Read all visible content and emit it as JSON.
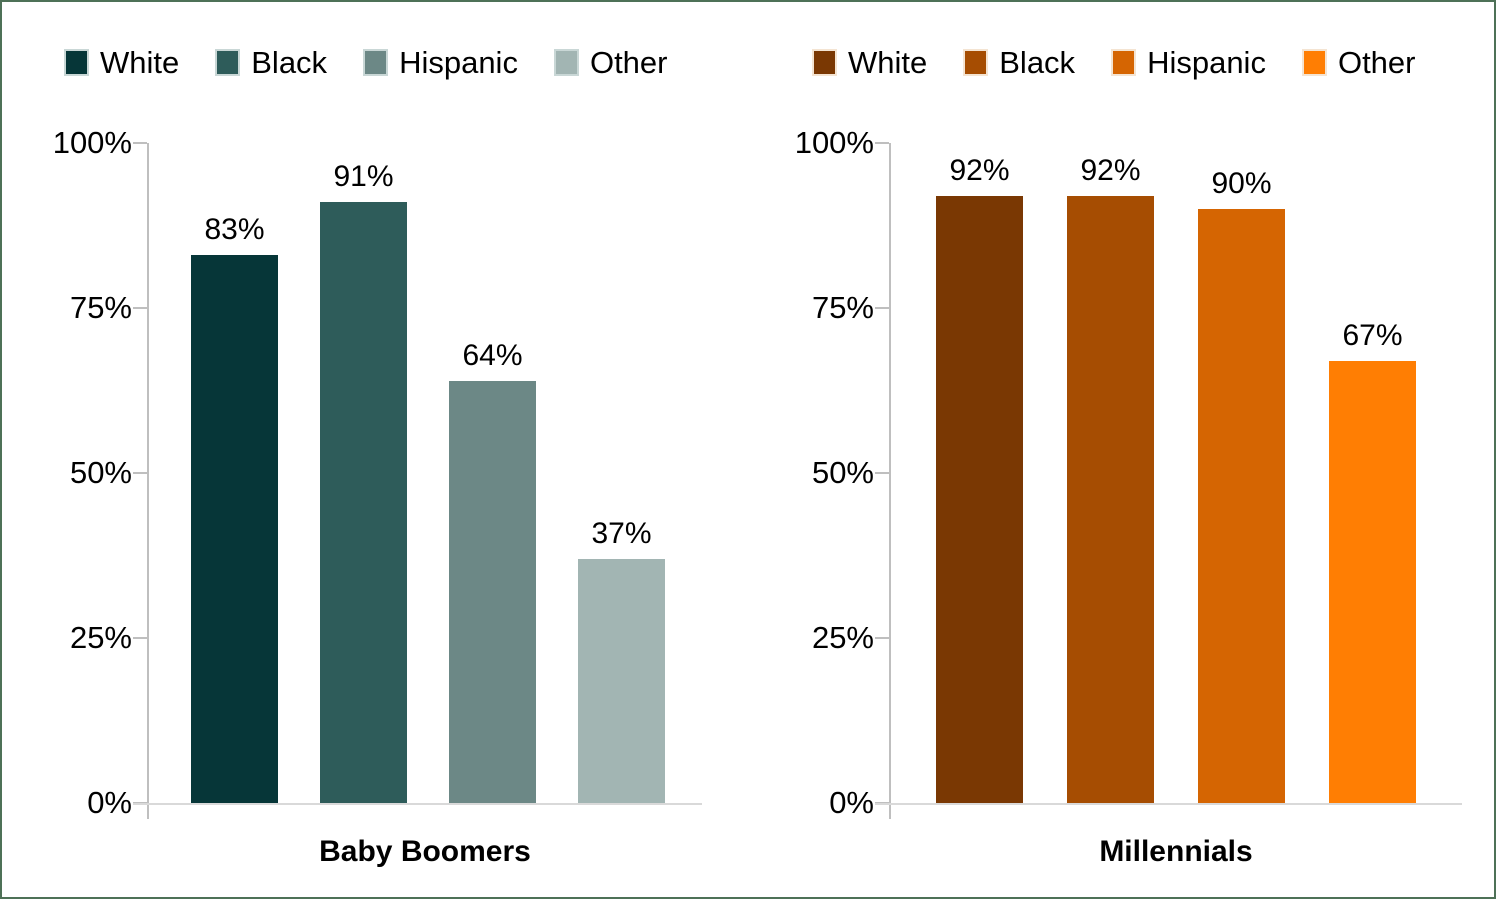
{
  "frame": {
    "border_color": "#4E7157",
    "background": "#FFFFFF"
  },
  "axis_style": {
    "axis_line_color": "#BFBFBF",
    "baseline_color": "#D9D9D9",
    "label_color": "#000000"
  },
  "chart_data": [
    {
      "type": "bar",
      "group_label": "Baby Boomers",
      "categories": [
        "White",
        "Black",
        "Hispanic",
        "Other"
      ],
      "values": [
        83,
        91,
        64,
        37
      ],
      "value_labels": [
        "83%",
        "91%",
        "64%",
        "37%"
      ],
      "legend": [
        "White",
        "Black",
        "Hispanic",
        "Other"
      ],
      "legend_position": "top",
      "bar_colors": [
        "#063638",
        "#2E5C5A",
        "#6C8886",
        "#A2B5B3"
      ],
      "swatch_border": "#C9D7D6",
      "ylim": [
        0,
        100
      ],
      "yticks": [
        "0%",
        "25%",
        "50%",
        "75%",
        "100%"
      ],
      "grid": false,
      "xlabel": "Baby Boomers",
      "ylabel": ""
    },
    {
      "type": "bar",
      "group_label": "Millennials",
      "categories": [
        "White",
        "Black",
        "Hispanic",
        "Other"
      ],
      "values": [
        92,
        92,
        90,
        67
      ],
      "value_labels": [
        "92%",
        "92%",
        "90%",
        "67%"
      ],
      "legend": [
        "White",
        "Black",
        "Hispanic",
        "Other"
      ],
      "legend_position": "top",
      "bar_colors": [
        "#7A3803",
        "#A64D02",
        "#D56502",
        "#FF7E03"
      ],
      "swatch_border": "#F4E4D2",
      "ylim": [
        0,
        100
      ],
      "yticks": [
        "0%",
        "25%",
        "50%",
        "75%",
        "100%"
      ],
      "grid": false,
      "xlabel": "Millennials",
      "ylabel": ""
    }
  ]
}
